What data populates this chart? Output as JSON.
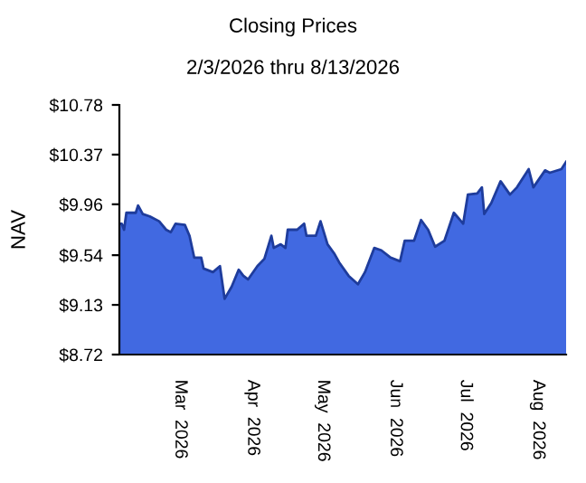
{
  "chart_data": {
    "type": "area",
    "title": "Closing Prices",
    "subtitle": "2/3/2026 thru 8/13/2026",
    "ylabel": "NAV",
    "x": [
      "2026-02-03",
      "2026-02-04",
      "2026-02-05",
      "2026-02-06",
      "2026-02-10",
      "2026-02-11",
      "2026-02-13",
      "2026-02-16",
      "2026-02-20",
      "2026-02-23",
      "2026-02-25",
      "2026-02-27",
      "2026-03-03",
      "2026-03-05",
      "2026-03-07",
      "2026-03-10",
      "2026-03-11",
      "2026-03-15",
      "2026-03-18",
      "2026-03-20",
      "2026-03-23",
      "2026-03-26",
      "2026-03-28",
      "2026-03-30",
      "2026-04-03",
      "2026-04-06",
      "2026-04-09",
      "2026-04-10",
      "2026-04-13",
      "2026-04-15",
      "2026-04-16",
      "2026-04-20",
      "2026-04-23",
      "2026-04-24",
      "2026-04-28",
      "2026-04-30",
      "2026-05-03",
      "2026-05-06",
      "2026-05-08",
      "2026-05-12",
      "2026-05-16",
      "2026-05-19",
      "2026-05-23",
      "2026-05-26",
      "2026-05-30",
      "2026-06-03",
      "2026-06-05",
      "2026-06-09",
      "2026-06-12",
      "2026-06-15",
      "2026-06-18",
      "2026-06-22",
      "2026-06-26",
      "2026-06-30",
      "2026-07-02",
      "2026-07-06",
      "2026-07-08",
      "2026-07-09",
      "2026-07-12",
      "2026-07-16",
      "2026-07-20",
      "2026-07-23",
      "2026-07-28",
      "2026-07-30",
      "2026-08-04",
      "2026-08-06",
      "2026-08-11",
      "2026-08-13"
    ],
    "series": [
      {
        "color": "#4169e1",
        "values": [
          9.8,
          9.8,
          9.75,
          9.89,
          9.89,
          9.95,
          9.88,
          9.86,
          9.82,
          9.75,
          9.73,
          9.8,
          9.79,
          9.7,
          9.52,
          9.52,
          9.43,
          9.4,
          9.45,
          9.18,
          9.28,
          9.42,
          9.37,
          9.34,
          9.45,
          9.51,
          9.7,
          9.6,
          9.63,
          9.6,
          9.75,
          9.75,
          9.8,
          9.7,
          9.7,
          9.82,
          9.63,
          9.55,
          9.48,
          9.37,
          9.3,
          9.4,
          9.6,
          9.58,
          9.52,
          9.49,
          9.66,
          9.66,
          9.83,
          9.75,
          9.61,
          9.66,
          9.89,
          9.8,
          10.04,
          10.05,
          10.1,
          9.88,
          9.97,
          10.15,
          10.04,
          10.1,
          10.25,
          10.1,
          10.24,
          10.22,
          10.25,
          10.31
        ]
      }
    ],
    "xlim": [
      "2026-02-03",
      "2026-08-13"
    ],
    "xticks": [
      {
        "value": "2026-03-01",
        "label": "Mar  2026"
      },
      {
        "value": "2026-04-01",
        "label": "Apr  2026"
      },
      {
        "value": "2026-05-01",
        "label": "May  2026"
      },
      {
        "value": "2026-06-01",
        "label": "Jun  2026"
      },
      {
        "value": "2026-07-01",
        "label": "Jul  2026"
      },
      {
        "value": "2026-08-01",
        "label": "Aug  2026"
      }
    ],
    "ylim": [
      8.72,
      10.78
    ],
    "yticks": [
      {
        "value": 8.72,
        "label": "$8.72"
      },
      {
        "value": 9.13,
        "label": "$9.13"
      },
      {
        "value": 9.54,
        "label": "$9.54"
      },
      {
        "value": 9.96,
        "label": "$9.96"
      },
      {
        "value": 10.37,
        "label": "$10.37"
      },
      {
        "value": 10.78,
        "label": "$10.78"
      }
    ],
    "grid": false,
    "legend": false
  }
}
